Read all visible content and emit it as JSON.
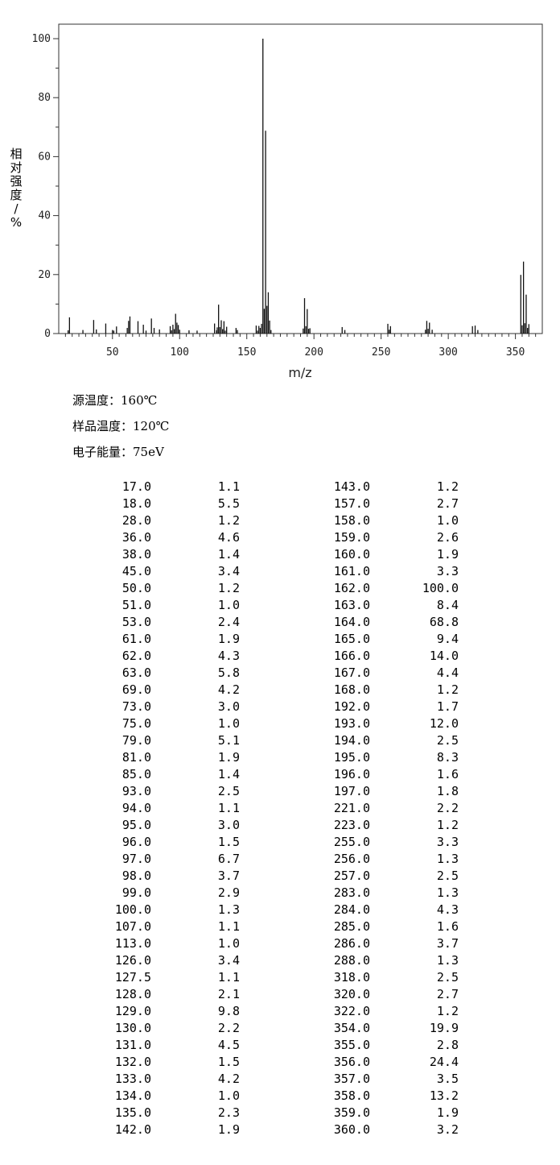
{
  "chart_data": {
    "type": "bar",
    "xlabel": "m/z",
    "ylabel": "相对强度/%",
    "xlim": [
      10,
      370
    ],
    "ylim": [
      0,
      100
    ],
    "xticks": [
      50,
      100,
      150,
      200,
      250,
      300,
      350
    ],
    "yticks": [
      0,
      20,
      40,
      60,
      80,
      100
    ],
    "grid": false,
    "x": [
      17.0,
      18.0,
      28.0,
      36.0,
      38.0,
      45.0,
      50.0,
      51.0,
      53.0,
      61.0,
      62.0,
      63.0,
      69.0,
      73.0,
      75.0,
      79.0,
      81.0,
      85.0,
      93.0,
      94.0,
      95.0,
      96.0,
      97.0,
      98.0,
      99.0,
      100.0,
      107.0,
      113.0,
      126.0,
      127.5,
      128.0,
      129.0,
      130.0,
      131.0,
      132.0,
      133.0,
      134.0,
      135.0,
      142.0,
      143.0,
      157.0,
      158.0,
      159.0,
      160.0,
      161.0,
      162.0,
      163.0,
      164.0,
      165.0,
      166.0,
      167.0,
      168.0,
      192.0,
      193.0,
      194.0,
      195.0,
      196.0,
      197.0,
      221.0,
      223.0,
      255.0,
      256.0,
      257.0,
      283.0,
      284.0,
      285.0,
      286.0,
      288.0,
      318.0,
      320.0,
      322.0,
      354.0,
      355.0,
      356.0,
      357.0,
      358.0,
      359.0,
      360.0
    ],
    "values": [
      1.1,
      5.5,
      1.2,
      4.6,
      1.4,
      3.4,
      1.2,
      1.0,
      2.4,
      1.9,
      4.3,
      5.8,
      4.2,
      3.0,
      1.0,
      5.1,
      1.9,
      1.4,
      2.5,
      1.1,
      3.0,
      1.5,
      6.7,
      3.7,
      2.9,
      1.3,
      1.1,
      1.0,
      3.4,
      1.1,
      2.1,
      9.8,
      2.2,
      4.5,
      1.5,
      4.2,
      1.0,
      2.3,
      1.9,
      1.2,
      2.7,
      1.0,
      2.6,
      1.9,
      3.3,
      100.0,
      8.4,
      68.8,
      9.4,
      14.0,
      4.4,
      1.2,
      1.7,
      12.0,
      2.5,
      8.3,
      1.6,
      1.8,
      2.2,
      1.2,
      3.3,
      1.3,
      2.5,
      1.3,
      4.3,
      1.6,
      3.7,
      1.3,
      2.5,
      2.7,
      1.2,
      19.9,
      2.8,
      24.4,
      3.5,
      13.2,
      1.9,
      3.2
    ]
  },
  "conditions": {
    "source_temp": "源温度：160℃",
    "sample_temp": "样品温度：120℃",
    "electron_energy": "电子能量：75eV"
  },
  "peak_table": [
    [
      "17.0",
      "1.1",
      "143.0",
      "1.2"
    ],
    [
      "18.0",
      "5.5",
      "157.0",
      "2.7"
    ],
    [
      "28.0",
      "1.2",
      "158.0",
      "1.0"
    ],
    [
      "36.0",
      "4.6",
      "159.0",
      "2.6"
    ],
    [
      "38.0",
      "1.4",
      "160.0",
      "1.9"
    ],
    [
      "45.0",
      "3.4",
      "161.0",
      "3.3"
    ],
    [
      "50.0",
      "1.2",
      "162.0",
      "100.0"
    ],
    [
      "51.0",
      "1.0",
      "163.0",
      "8.4"
    ],
    [
      "53.0",
      "2.4",
      "164.0",
      "68.8"
    ],
    [
      "61.0",
      "1.9",
      "165.0",
      "9.4"
    ],
    [
      "62.0",
      "4.3",
      "166.0",
      "14.0"
    ],
    [
      "63.0",
      "5.8",
      "167.0",
      "4.4"
    ],
    [
      "69.0",
      "4.2",
      "168.0",
      "1.2"
    ],
    [
      "73.0",
      "3.0",
      "192.0",
      "1.7"
    ],
    [
      "75.0",
      "1.0",
      "193.0",
      "12.0"
    ],
    [
      "79.0",
      "5.1",
      "194.0",
      "2.5"
    ],
    [
      "81.0",
      "1.9",
      "195.0",
      "8.3"
    ],
    [
      "85.0",
      "1.4",
      "196.0",
      "1.6"
    ],
    [
      "93.0",
      "2.5",
      "197.0",
      "1.8"
    ],
    [
      "94.0",
      "1.1",
      "221.0",
      "2.2"
    ],
    [
      "95.0",
      "3.0",
      "223.0",
      "1.2"
    ],
    [
      "96.0",
      "1.5",
      "255.0",
      "3.3"
    ],
    [
      "97.0",
      "6.7",
      "256.0",
      "1.3"
    ],
    [
      "98.0",
      "3.7",
      "257.0",
      "2.5"
    ],
    [
      "99.0",
      "2.9",
      "283.0",
      "1.3"
    ],
    [
      "100.0",
      "1.3",
      "284.0",
      "4.3"
    ],
    [
      "107.0",
      "1.1",
      "285.0",
      "1.6"
    ],
    [
      "113.0",
      "1.0",
      "286.0",
      "3.7"
    ],
    [
      "126.0",
      "3.4",
      "288.0",
      "1.3"
    ],
    [
      "127.5",
      "1.1",
      "318.0",
      "2.5"
    ],
    [
      "128.0",
      "2.1",
      "320.0",
      "2.7"
    ],
    [
      "129.0",
      "9.8",
      "322.0",
      "1.2"
    ],
    [
      "130.0",
      "2.2",
      "354.0",
      "19.9"
    ],
    [
      "131.0",
      "4.5",
      "355.0",
      "2.8"
    ],
    [
      "132.0",
      "1.5",
      "356.0",
      "24.4"
    ],
    [
      "133.0",
      "4.2",
      "357.0",
      "3.5"
    ],
    [
      "134.0",
      "1.0",
      "358.0",
      "13.2"
    ],
    [
      "135.0",
      "2.3",
      "359.0",
      "1.9"
    ],
    [
      "142.0",
      "1.9",
      "360.0",
      "3.2"
    ]
  ]
}
